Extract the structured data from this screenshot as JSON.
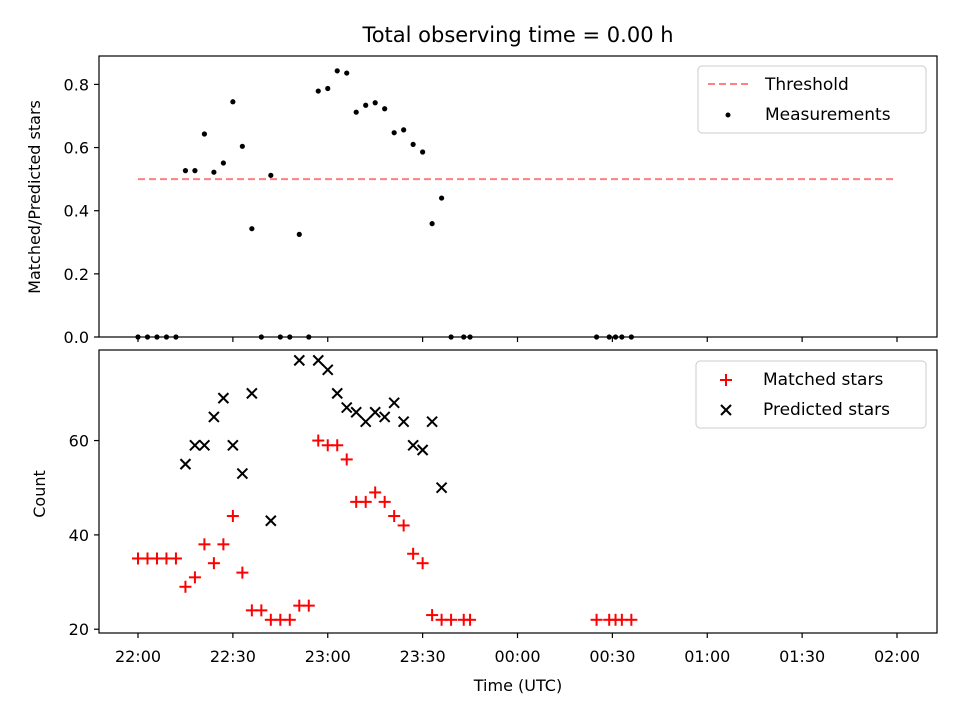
{
  "chart_data": [
    {
      "type": "scatter",
      "title": "Total observing time = 0.00 h",
      "ylabel": "Matched/Predicted stars",
      "ylim": [
        0,
        0.89
      ],
      "yticks": [
        0.0,
        0.2,
        0.4,
        0.6,
        0.8
      ],
      "ytick_labels": [
        "0.0",
        "0.2",
        "0.4",
        "0.6",
        "0.8"
      ],
      "legend_position": "top-right",
      "threshold": {
        "name": "Threshold",
        "x_start": "22:00",
        "x_end": "02:00",
        "y": 0.5,
        "color": "#ff8080"
      },
      "series": [
        {
          "name": "Measurements",
          "color": "#000000",
          "points": [
            [
              "22:00",
              0
            ],
            [
              "22:03",
              0
            ],
            [
              "22:06",
              0
            ],
            [
              "22:09",
              0
            ],
            [
              "22:12",
              0
            ],
            [
              "22:15",
              0.527
            ],
            [
              "22:18",
              0.527
            ],
            [
              "22:21",
              0.643
            ],
            [
              "22:24",
              0.522
            ],
            [
              "22:27",
              0.551
            ],
            [
              "22:30",
              0.745
            ],
            [
              "22:33",
              0.604
            ],
            [
              "22:36",
              0.343
            ],
            [
              "22:39",
              0
            ],
            [
              "22:42",
              0.512
            ],
            [
              "22:45",
              0
            ],
            [
              "22:48",
              0
            ],
            [
              "22:51",
              0.325
            ],
            [
              "22:54",
              0
            ],
            [
              "22:57",
              0.779
            ],
            [
              "23:00",
              0.787
            ],
            [
              "23:03",
              0.843
            ],
            [
              "23:06",
              0.836
            ],
            [
              "23:09",
              0.712
            ],
            [
              "23:12",
              0.734
            ],
            [
              "23:15",
              0.742
            ],
            [
              "23:18",
              0.723
            ],
            [
              "23:21",
              0.647
            ],
            [
              "23:24",
              0.656
            ],
            [
              "23:27",
              0.61
            ],
            [
              "23:30",
              0.586
            ],
            [
              "23:33",
              0.359
            ],
            [
              "23:36",
              0.44
            ],
            [
              "23:39",
              0
            ],
            [
              "23:43",
              0
            ],
            [
              "23:45",
              0
            ],
            [
              "00:25",
              0
            ],
            [
              "00:29",
              0
            ],
            [
              "00:31",
              0
            ],
            [
              "00:33",
              0
            ],
            [
              "00:36",
              0
            ]
          ]
        }
      ]
    },
    {
      "type": "scatter",
      "xlabel": "Time (UTC)",
      "ylabel": "Count",
      "ylim": [
        19.2,
        79.2
      ],
      "yticks": [
        20,
        40,
        60
      ],
      "ytick_labels": [
        "20",
        "40",
        "60"
      ],
      "xticks": [
        "22:00",
        "22:30",
        "23:00",
        "23:30",
        "00:00",
        "00:30",
        "01:00",
        "01:30",
        "02:00"
      ],
      "legend_position": "top-right",
      "series": [
        {
          "name": "Matched stars",
          "color": "#ff0000",
          "marker": "+",
          "points": [
            [
              "22:00",
              35
            ],
            [
              "22:03",
              35
            ],
            [
              "22:06",
              35
            ],
            [
              "22:09",
              35
            ],
            [
              "22:12",
              35
            ],
            [
              "22:15",
              29
            ],
            [
              "22:18",
              31
            ],
            [
              "22:21",
              38
            ],
            [
              "22:24",
              34
            ],
            [
              "22:27",
              38
            ],
            [
              "22:30",
              44
            ],
            [
              "22:33",
              32
            ],
            [
              "22:36",
              24
            ],
            [
              "22:39",
              24
            ],
            [
              "22:42",
              22
            ],
            [
              "22:45",
              22
            ],
            [
              "22:48",
              22
            ],
            [
              "22:51",
              25
            ],
            [
              "22:54",
              25
            ],
            [
              "22:57",
              60
            ],
            [
              "23:00",
              59
            ],
            [
              "23:03",
              59
            ],
            [
              "23:06",
              56
            ],
            [
              "23:09",
              47
            ],
            [
              "23:12",
              47
            ],
            [
              "23:15",
              49
            ],
            [
              "23:18",
              47
            ],
            [
              "23:21",
              44
            ],
            [
              "23:24",
              42
            ],
            [
              "23:27",
              36
            ],
            [
              "23:30",
              34
            ],
            [
              "23:33",
              23
            ],
            [
              "23:36",
              22
            ],
            [
              "23:39",
              22
            ],
            [
              "23:43",
              22
            ],
            [
              "23:45",
              22
            ],
            [
              "00:25",
              22
            ],
            [
              "00:29",
              22
            ],
            [
              "00:31",
              22
            ],
            [
              "00:33",
              22
            ],
            [
              "00:36",
              22
            ]
          ]
        },
        {
          "name": "Predicted stars",
          "color": "#000000",
          "marker": "x",
          "points": [
            [
              "22:15",
              55
            ],
            [
              "22:18",
              59
            ],
            [
              "22:21",
              59
            ],
            [
              "22:24",
              65
            ],
            [
              "22:27",
              69
            ],
            [
              "22:30",
              59
            ],
            [
              "22:33",
              53
            ],
            [
              "22:36",
              70
            ],
            [
              "22:42",
              43
            ],
            [
              "22:51",
              77
            ],
            [
              "22:57",
              77
            ],
            [
              "23:00",
              75
            ],
            [
              "23:03",
              70
            ],
            [
              "23:06",
              67
            ],
            [
              "23:09",
              66
            ],
            [
              "23:12",
              64
            ],
            [
              "23:15",
              66
            ],
            [
              "23:18",
              65
            ],
            [
              "23:21",
              68
            ],
            [
              "23:24",
              64
            ],
            [
              "23:27",
              59
            ],
            [
              "23:30",
              58
            ],
            [
              "23:33",
              64
            ],
            [
              "23:36",
              50
            ]
          ]
        }
      ]
    }
  ]
}
